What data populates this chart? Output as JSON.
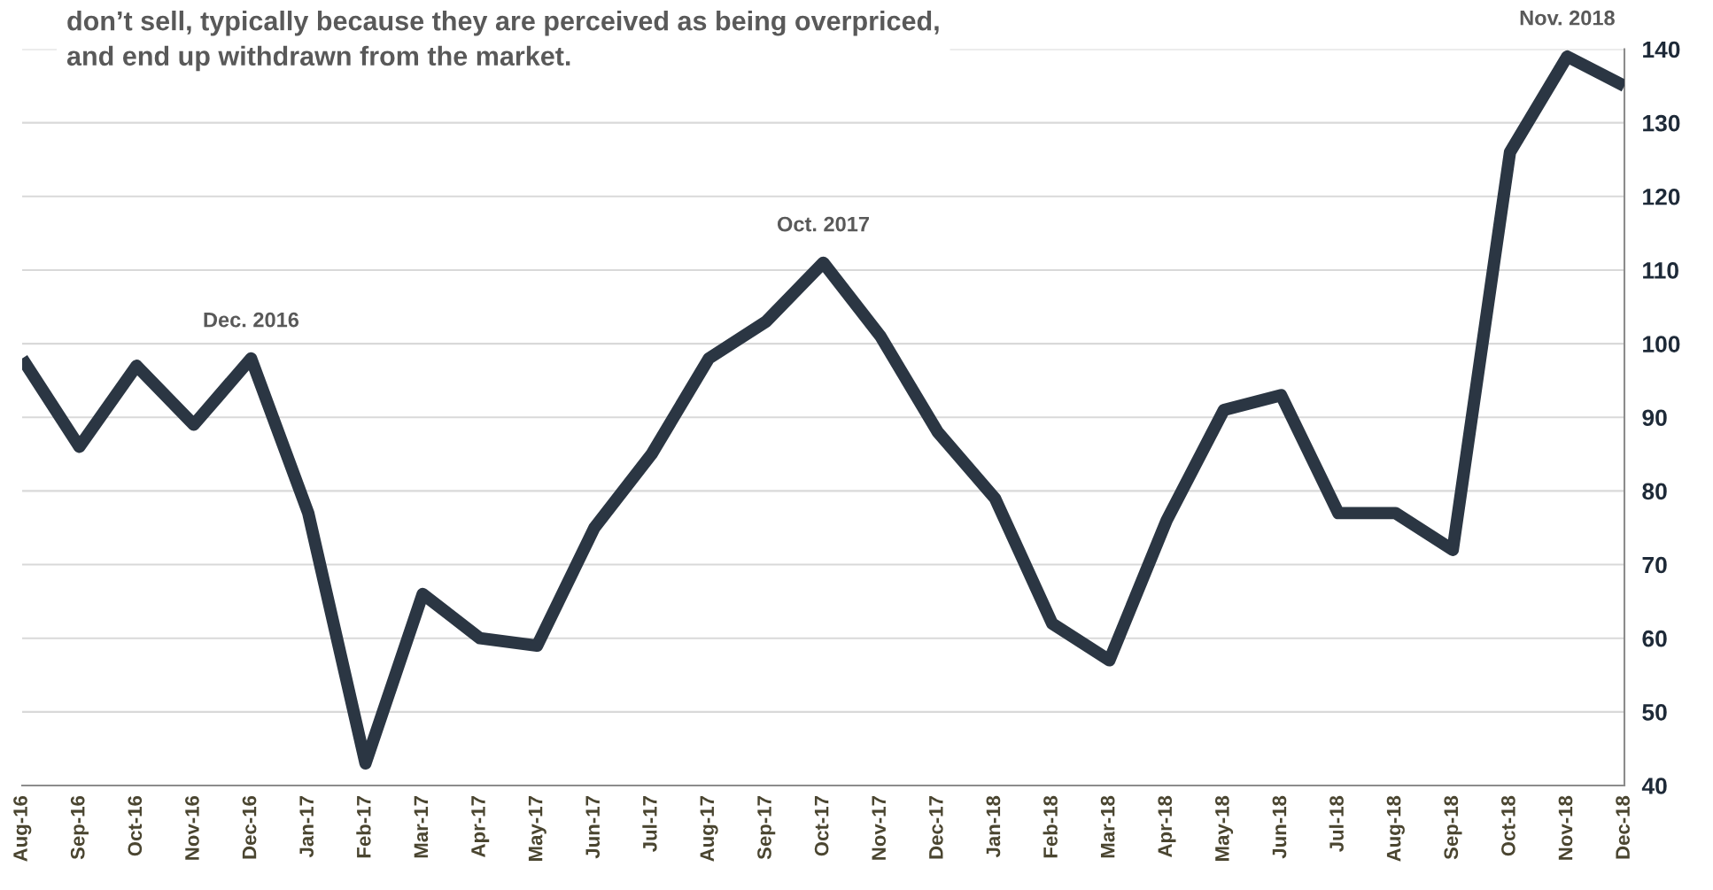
{
  "chart_data": {
    "type": "line",
    "categories": [
      "Aug-16",
      "Sep-16",
      "Oct-16",
      "Nov-16",
      "Dec-16",
      "Jan-17",
      "Feb-17",
      "Mar-17",
      "Apr-17",
      "May-17",
      "Jun-17",
      "Jul-17",
      "Aug-17",
      "Sep-17",
      "Oct-17",
      "Nov-17",
      "Dec-17",
      "Jan-18",
      "Feb-18",
      "Mar-18",
      "Apr-18",
      "May-18",
      "Jun-18",
      "Jul-18",
      "Aug-18",
      "Sep-18",
      "Oct-18",
      "Nov-18",
      "Dec-18"
    ],
    "series": [
      {
        "color": "#2b3643",
        "values": [
          98,
          86,
          97,
          89,
          98,
          77,
          43,
          66,
          60,
          59,
          75,
          85,
          98,
          103,
          111,
          101,
          88,
          79,
          62,
          57,
          76,
          91,
          93,
          77,
          77,
          72,
          126,
          139,
          135
        ]
      }
    ],
    "ylim": [
      40,
      140
    ],
    "yticks": [
      40,
      50,
      60,
      70,
      80,
      90,
      100,
      110,
      120,
      130,
      140
    ],
    "grid": "y",
    "line_style": "solid",
    "annotations": [
      "don’t sell, typically because they are perceived as being overpriced,\nand end up withdrawn from the market.",
      {
        "text": "Dec. 2016",
        "x": "Dec-16",
        "y": 98
      },
      {
        "text": "Oct. 2017",
        "x": "Oct-17",
        "y": 111
      },
      {
        "text": "Nov. 2018",
        "x": "Nov-18",
        "y": 139
      }
    ]
  }
}
